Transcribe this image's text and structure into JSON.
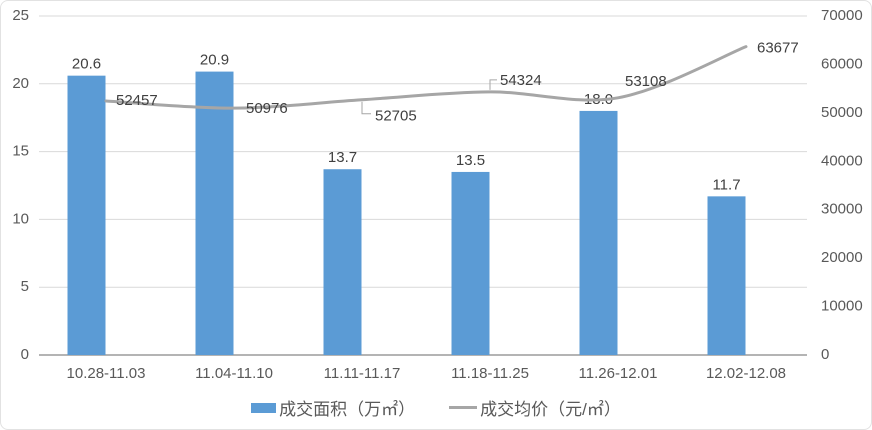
{
  "chart": {
    "background": "#ffffff",
    "border_color": "#e2e2e2",
    "gridline_color": "#d9d9d9",
    "axisline_color": "#9b9b9b",
    "axis_text_color": "#595959",
    "data_label_color": "#404040"
  },
  "chart_data": {
    "type": "combo-bar-line",
    "title": "",
    "categories": [
      "10.28-11.03",
      "11.04-11.10",
      "11.11-11.17",
      "11.18-11.25",
      "11.26-12.01",
      "12.02-12.08"
    ],
    "series": [
      {
        "name": "成交面积（万㎡）",
        "type": "bar",
        "axis": "primary",
        "color": "#5b9bd5",
        "values": [
          20.6,
          20.9,
          13.7,
          13.5,
          18.0,
          11.7
        ],
        "labels": [
          "20.6",
          "20.9",
          "13.7",
          "13.5",
          "18.0",
          "11.7"
        ]
      },
      {
        "name": "成交均价（元/㎡）",
        "type": "line",
        "axis": "secondary",
        "color": "#a6a6a6",
        "values": [
          52457,
          50976,
          52705,
          54324,
          53108,
          63677
        ],
        "labels": [
          "52457",
          "50976",
          "52705",
          "54324",
          "53108",
          "63677"
        ]
      }
    ],
    "primary_axis": {
      "min": 0,
      "max": 25,
      "step": 5,
      "ticks": [
        "0",
        "5",
        "10",
        "15",
        "20",
        "25"
      ]
    },
    "secondary_axis": {
      "min": 0,
      "max": 70000,
      "step": 10000,
      "ticks": [
        "0",
        "10000",
        "20000",
        "30000",
        "40000",
        "50000",
        "60000",
        "70000"
      ]
    },
    "grid": true,
    "legend_position": "bottom"
  }
}
